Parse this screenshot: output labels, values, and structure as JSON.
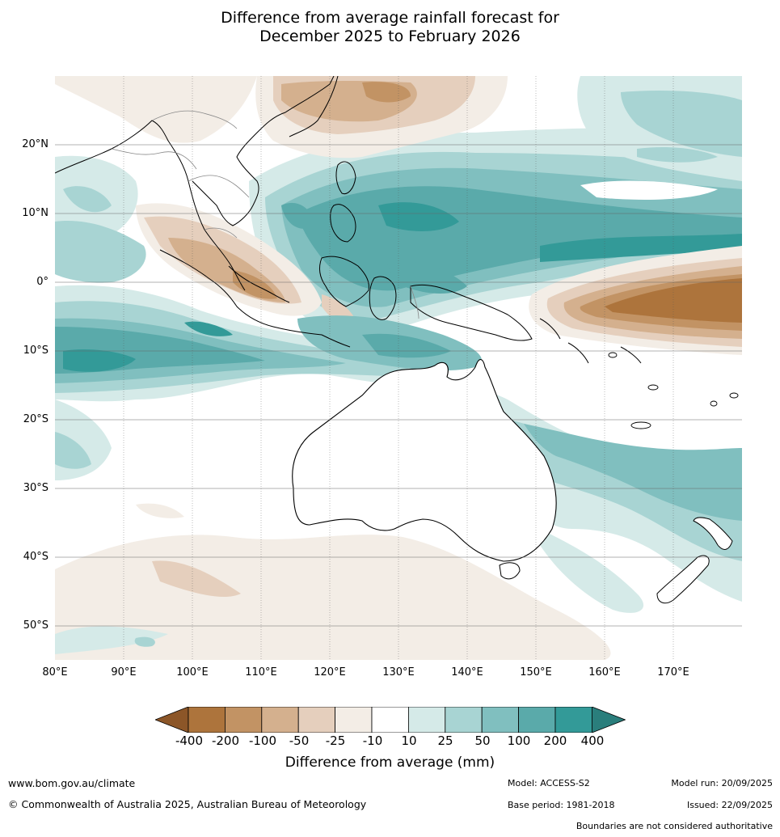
{
  "title": {
    "line1": "Difference from average rainfall forecast for",
    "line2": "December 2025 to February 2026"
  },
  "map": {
    "lat_labels": [
      "20°N",
      "10°N",
      "0°",
      "10°S",
      "20°S",
      "30°S",
      "40°S",
      "50°S"
    ],
    "lon_labels": [
      "80°E",
      "90°E",
      "100°E",
      "110°E",
      "120°E",
      "130°E",
      "140°E",
      "150°E",
      "160°E",
      "170°E"
    ]
  },
  "legend": {
    "title": "Difference from average (mm)",
    "tick_labels": [
      "-400",
      "-200",
      "-100",
      "-50",
      "-25",
      "-10",
      "10",
      "25",
      "50",
      "100",
      "200",
      "400"
    ],
    "colors": [
      "#8c5628",
      "#ad743c",
      "#c29364",
      "#d4b08e",
      "#e5cfbd",
      "#f3ede6",
      "#ffffff",
      "#d5eae8",
      "#a8d4d3",
      "#80bfbf",
      "#5aaaaa",
      "#339a98",
      "#2a7e7c"
    ]
  },
  "footer": {
    "website": "www.bom.gov.au/climate",
    "copyright": "© Commonwealth of Australia 2025, Australian Bureau of Meteorology",
    "model": "Model: ACCESS-S2",
    "base_period": "Base period: 1981-2018",
    "model_run": "Model run: 20/09/2025",
    "issued": "Issued: 22/09/2025",
    "disclaimer": "Boundaries are not considered authoritative"
  }
}
